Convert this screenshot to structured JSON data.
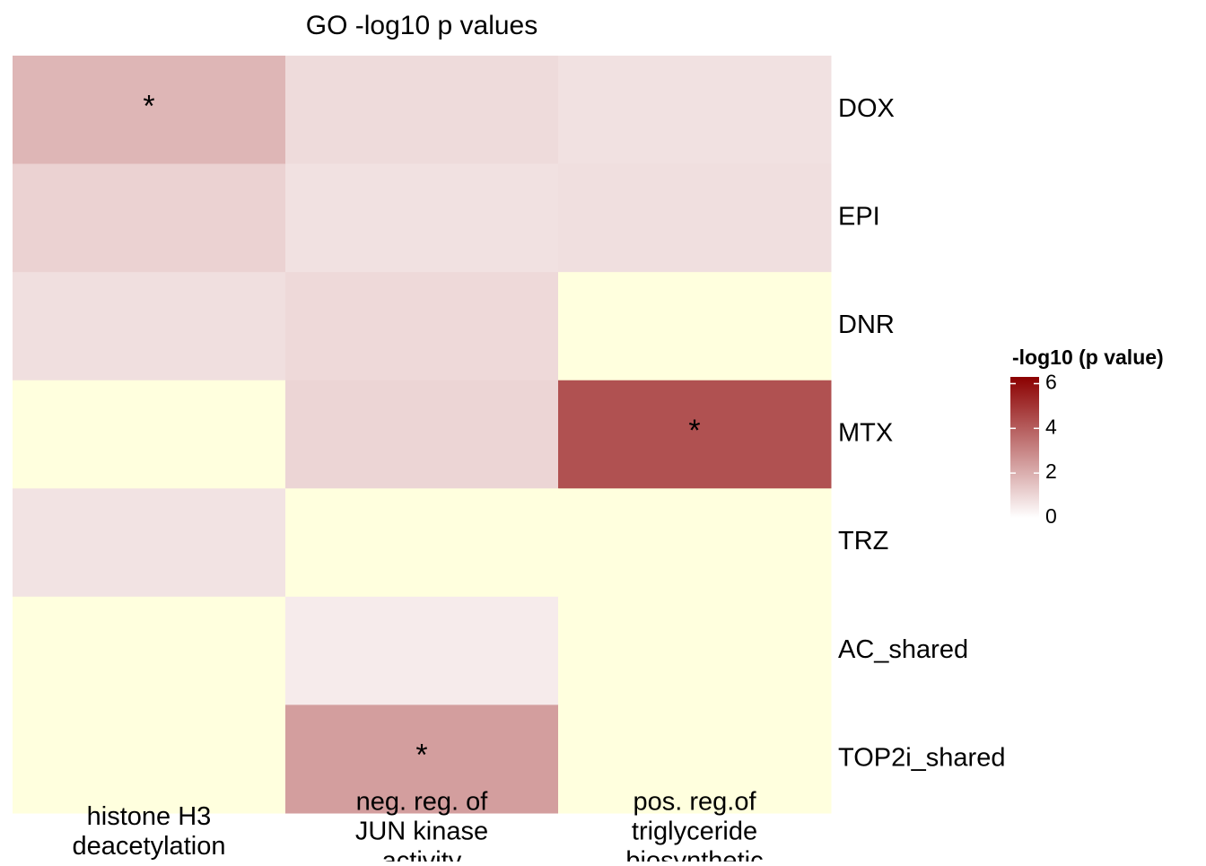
{
  "chart_data": {
    "type": "heatmap",
    "title": "GO -log10 p values",
    "columns": [
      [
        "histone H3",
        "deacetylation"
      ],
      [
        "neg. reg. of",
        "JUN kinase",
        "activity"
      ],
      [
        "pos. reg.of",
        "triglyceride",
        "biosynthetic"
      ]
    ],
    "rows": [
      "DOX",
      "EPI",
      "DNR",
      "MTX",
      "TRZ",
      "AC_shared",
      "TOP2i_shared"
    ],
    "values": [
      [
        1.8,
        0.9,
        0.75
      ],
      [
        1.1,
        0.75,
        0.8
      ],
      [
        0.8,
        0.95,
        null
      ],
      [
        null,
        1.05,
        4.3
      ],
      [
        0.7,
        null,
        null
      ],
      [
        null,
        0.5,
        null
      ],
      [
        null,
        2.4,
        null
      ]
    ],
    "cell_labels": [
      [
        "*",
        null,
        null
      ],
      [
        null,
        null,
        null
      ],
      [
        null,
        null,
        null
      ],
      [
        null,
        null,
        "*"
      ],
      [
        null,
        null,
        null
      ],
      [
        null,
        null,
        null
      ],
      [
        null,
        "*",
        null
      ]
    ],
    "colors": [
      "#FFFFFF",
      "#8B0000"
    ],
    "na_color": "#FFFFDE",
    "legend": {
      "title": "-log10 (p value)",
      "zlim": [
        0,
        6.3
      ],
      "ticks": [
        0,
        2,
        4,
        6
      ]
    }
  }
}
